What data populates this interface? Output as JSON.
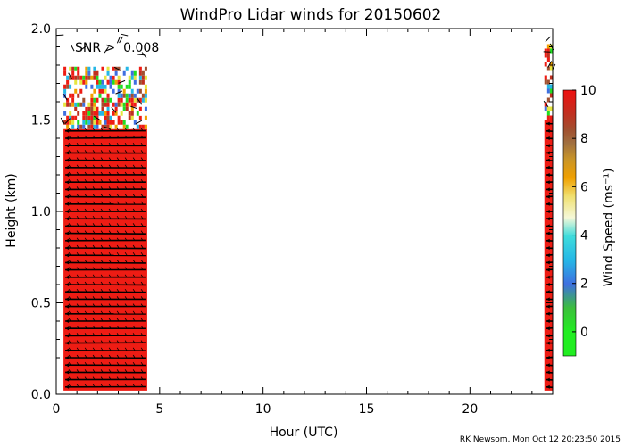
{
  "chart_data": {
    "type": "heatmap",
    "title": "WindPro Lidar winds for 20150602",
    "xlabel": "Hour (UTC)",
    "ylabel": "Height (km)",
    "xlim": [
      0,
      24
    ],
    "ylim": [
      0,
      2.0
    ],
    "x_ticks": [
      "0",
      "5",
      "10",
      "15",
      "20"
    ],
    "y_ticks": [
      "0.0",
      "0.5",
      "1.0",
      "1.5",
      "2.0"
    ],
    "annotation": "SNR >  0.008",
    "colorbar": {
      "label": "Wind Speed (ms⁻¹)",
      "range": [
        -1,
        10
      ],
      "ticks": [
        "0",
        "2",
        "4",
        "6",
        "8",
        "10"
      ]
    },
    "series": [
      {
        "x_start": 0.35,
        "x_end": 4.4,
        "h_solid_top": 1.45,
        "h_sparse_top": 1.78,
        "h_max": 1.98,
        "dominant_speed": 10
      },
      {
        "x_start": 23.6,
        "x_end": 24.0,
        "h_solid_top": 1.5,
        "h_sparse_top": 1.9,
        "h_max": 1.98,
        "dominant_speed": 10
      }
    ],
    "footer": "RK Newsom, Mon Oct 12 20:23:50 2015"
  },
  "colors": {
    "axis": "#000000",
    "background": "#ffffff",
    "dominant": "#ee1c14",
    "barbs": "#000000"
  }
}
